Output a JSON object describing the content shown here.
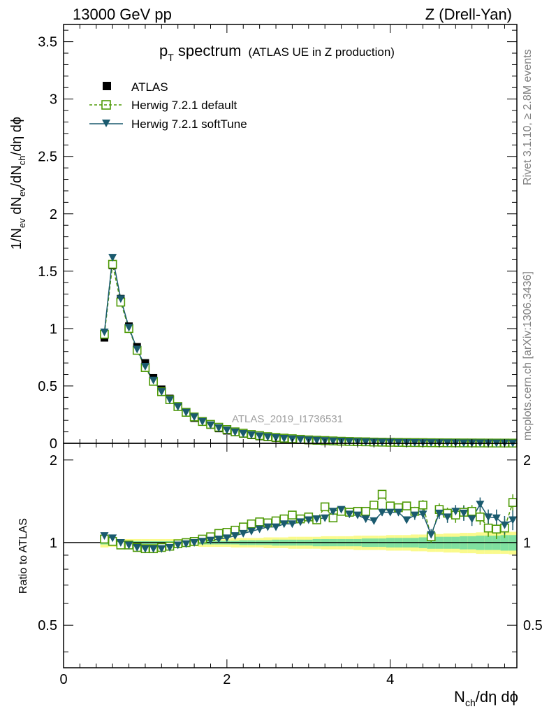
{
  "header": {
    "left": "13000 GeV pp",
    "right": "Z (Drell-Yan)"
  },
  "title": {
    "main_p": "p",
    "main_sub": "T",
    "main_rest": " spectrum",
    "suffix": "(ATLAS UE in Z production)"
  },
  "side": {
    "rivet": "Rivet 3.1.10, ≥ 2.8M events",
    "mcplots": "mcplots.cern.ch [arXiv:1306.3436]"
  },
  "watermark": "ATLAS_2019_I1736531",
  "legend": [
    {
      "label": "ATLAS",
      "style": "data"
    },
    {
      "label": "Herwig 7.2.1 default",
      "style": "default"
    },
    {
      "label": "Herwig 7.2.1 softTune",
      "style": "soft"
    }
  ],
  "colors": {
    "data": "#000000",
    "default": "#4e9a06",
    "soft": "#1a5a6e",
    "band_outer": "#fafa8c",
    "band_inner": "#7fe0a0"
  },
  "axes": {
    "ylabel_top": "1/N_ev dN_ev/dN_ch/dη dϕ",
    "ylabel_bottom": "Ratio to ATLAS",
    "xlabel": "N_ch/dη dϕ"
  },
  "chart_data": [
    {
      "type": "scatter",
      "title": "pT spectrum (ATLAS UE in Z production)",
      "xlim": [
        0,
        5.55
      ],
      "ylim": [
        0,
        3.65
      ],
      "xticks": [
        0,
        2,
        4
      ],
      "yticks": [
        "0",
        "0.5",
        "1",
        "1.5",
        "2",
        "2.5",
        "3",
        "3.5"
      ],
      "x": [
        0.5,
        0.6,
        0.7,
        0.8,
        0.9,
        1.0,
        1.1,
        1.2,
        1.3,
        1.4,
        1.5,
        1.6,
        1.7,
        1.8,
        1.9,
        2.0,
        2.1,
        2.2,
        2.3,
        2.4,
        2.5,
        2.6,
        2.7,
        2.8,
        2.9,
        3.0,
        3.1,
        3.2,
        3.3,
        3.4,
        3.5,
        3.6,
        3.7,
        3.8,
        3.9,
        4.0,
        4.1,
        4.2,
        4.3,
        4.4,
        4.5,
        4.6,
        4.7,
        4.8,
        4.9,
        5.0,
        5.1,
        5.2,
        5.3,
        5.4,
        5.5
      ],
      "series": [
        {
          "name": "ATLAS",
          "values": [
            0.92,
            1.55,
            1.26,
            1.02,
            0.84,
            0.7,
            0.57,
            0.47,
            0.39,
            0.32,
            0.27,
            0.22,
            0.19,
            0.16,
            0.13,
            0.11,
            0.095,
            0.082,
            0.07,
            0.06,
            0.052,
            0.045,
            0.039,
            0.034,
            0.029,
            0.025,
            0.022,
            0.019,
            0.017,
            0.015,
            0.013,
            0.011,
            0.01,
            0.009,
            0.008,
            0.007,
            0.006,
            0.0055,
            0.005,
            0.0045,
            0.004,
            0.0036,
            0.0032,
            0.0029,
            0.0026,
            0.0023,
            0.0021,
            0.0019,
            0.0017,
            0.0015,
            0.0014
          ]
        },
        {
          "name": "Herwig 7.2.1 default",
          "values": [
            0.95,
            1.56,
            1.23,
            1.0,
            0.81,
            0.66,
            0.54,
            0.45,
            0.38,
            0.32,
            0.27,
            0.23,
            0.19,
            0.165,
            0.14,
            0.12,
            0.1,
            0.088,
            0.077,
            0.067,
            0.058,
            0.051,
            0.045,
            0.04,
            0.035,
            0.03,
            0.027,
            0.024,
            0.021,
            0.018,
            0.016,
            0.014,
            0.013,
            0.011,
            0.01,
            0.009,
            0.008,
            0.007,
            0.0065,
            0.006,
            0.005,
            0.0045,
            0.004,
            0.0036,
            0.0033,
            0.003,
            0.0027,
            0.0024,
            0.0021,
            0.0019,
            0.0017
          ]
        },
        {
          "name": "Herwig 7.2.1 softTune",
          "values": [
            0.97,
            1.62,
            1.26,
            1.01,
            0.82,
            0.67,
            0.55,
            0.45,
            0.38,
            0.32,
            0.27,
            0.23,
            0.19,
            0.16,
            0.135,
            0.115,
            0.098,
            0.085,
            0.074,
            0.064,
            0.056,
            0.049,
            0.043,
            0.038,
            0.033,
            0.029,
            0.026,
            0.023,
            0.02,
            0.018,
            0.016,
            0.014,
            0.012,
            0.011,
            0.01,
            0.0089,
            0.0078,
            0.007,
            0.0063,
            0.0057,
            0.0051,
            0.0046,
            0.0042,
            0.0038,
            0.0034,
            0.0031,
            0.0028,
            0.0025,
            0.0022,
            0.002,
            0.0018
          ]
        }
      ]
    },
    {
      "type": "scatter",
      "title": "Ratio to ATLAS",
      "xlim": [
        0,
        5.55
      ],
      "ylim": [
        0.35,
        2.3
      ],
      "xticks": [
        0,
        2,
        4
      ],
      "yticks": [
        "0.5",
        "1",
        "2"
      ],
      "x": [
        0.5,
        0.6,
        0.7,
        0.8,
        0.9,
        1.0,
        1.1,
        1.2,
        1.3,
        1.4,
        1.5,
        1.6,
        1.7,
        1.8,
        1.9,
        2.0,
        2.1,
        2.2,
        2.3,
        2.4,
        2.5,
        2.6,
        2.7,
        2.8,
        2.9,
        3.0,
        3.1,
        3.2,
        3.3,
        3.4,
        3.5,
        3.6,
        3.7,
        3.8,
        3.9,
        4.0,
        4.1,
        4.2,
        4.3,
        4.4,
        4.5,
        4.6,
        4.7,
        4.8,
        4.9,
        5.0,
        5.1,
        5.2,
        5.3,
        5.4,
        5.5
      ],
      "band_inner": [
        0.015,
        0.015,
        0.012,
        0.012,
        0.012,
        0.012,
        0.012,
        0.012,
        0.012,
        0.012,
        0.012,
        0.012,
        0.015,
        0.015,
        0.015,
        0.015,
        0.015,
        0.02,
        0.02,
        0.02,
        0.02,
        0.025,
        0.025,
        0.025,
        0.025,
        0.025,
        0.03,
        0.03,
        0.03,
        0.03,
        0.03,
        0.03,
        0.035,
        0.035,
        0.035,
        0.04,
        0.04,
        0.04,
        0.04,
        0.045,
        0.05,
        0.05,
        0.05,
        0.05,
        0.055,
        0.055,
        0.06,
        0.06,
        0.06,
        0.065,
        0.065
      ],
      "band_outer": [
        0.04,
        0.035,
        0.03,
        0.03,
        0.03,
        0.03,
        0.03,
        0.03,
        0.03,
        0.03,
        0.03,
        0.03,
        0.035,
        0.035,
        0.035,
        0.035,
        0.04,
        0.04,
        0.04,
        0.04,
        0.045,
        0.045,
        0.045,
        0.05,
        0.05,
        0.05,
        0.05,
        0.055,
        0.055,
        0.055,
        0.055,
        0.06,
        0.06,
        0.06,
        0.06,
        0.065,
        0.065,
        0.065,
        0.07,
        0.07,
        0.075,
        0.075,
        0.08,
        0.08,
        0.085,
        0.085,
        0.09,
        0.09,
        0.09,
        0.09,
        0.095
      ],
      "series": [
        {
          "name": "Herwig 7.2.1 default",
          "values": [
            1.03,
            1.01,
            0.98,
            0.98,
            0.96,
            0.95,
            0.95,
            0.96,
            0.97,
            0.99,
            1.0,
            1.01,
            1.03,
            1.05,
            1.08,
            1.09,
            1.11,
            1.14,
            1.17,
            1.19,
            1.18,
            1.2,
            1.22,
            1.26,
            1.22,
            1.24,
            1.21,
            1.35,
            1.23,
            1.3,
            1.29,
            1.3,
            1.3,
            1.37,
            1.5,
            1.36,
            1.34,
            1.36,
            1.3,
            1.37,
            1.05,
            1.32,
            1.28,
            1.26,
            1.29,
            1.3,
            1.24,
            1.13,
            1.12,
            1.13,
            1.4
          ],
          "err": [
            0,
            0,
            0,
            0,
            0,
            0,
            0,
            0,
            0,
            0,
            0,
            0,
            0,
            0,
            0,
            0,
            0,
            0,
            0,
            0,
            0,
            0,
            0,
            0,
            0,
            0,
            0,
            0,
            0,
            0,
            0,
            0,
            0,
            0,
            0.04,
            0,
            0,
            0,
            0.05,
            0.06,
            0.05,
            0.07,
            0.06,
            0.08,
            0.08,
            0.07,
            0.08,
            0.08,
            0.09,
            0.09,
            0.1
          ]
        },
        {
          "name": "Herwig 7.2.1 softTune",
          "values": [
            1.06,
            1.04,
            1.0,
            0.98,
            0.96,
            0.95,
            0.95,
            0.95,
            0.96,
            0.98,
            0.99,
            1.0,
            1.01,
            1.02,
            1.03,
            1.04,
            1.06,
            1.08,
            1.1,
            1.12,
            1.14,
            1.14,
            1.17,
            1.17,
            1.19,
            1.21,
            1.22,
            1.23,
            1.3,
            1.32,
            1.27,
            1.26,
            1.22,
            1.2,
            1.29,
            1.29,
            1.29,
            1.21,
            1.26,
            1.27,
            1.07,
            1.28,
            1.24,
            1.3,
            1.28,
            1.22,
            1.38,
            1.24,
            1.23,
            1.16,
            1.21
          ],
          "err": [
            0,
            0,
            0,
            0,
            0,
            0,
            0,
            0,
            0,
            0,
            0,
            0,
            0,
            0,
            0,
            0,
            0,
            0,
            0,
            0,
            0,
            0,
            0,
            0,
            0,
            0,
            0,
            0,
            0,
            0,
            0,
            0,
            0,
            0,
            0.04,
            0,
            0,
            0,
            0.05,
            0.05,
            0.05,
            0.06,
            0.06,
            0.07,
            0.08,
            0.07,
            0.08,
            0.08,
            0.09,
            0.09,
            0.1
          ]
        }
      ]
    }
  ]
}
